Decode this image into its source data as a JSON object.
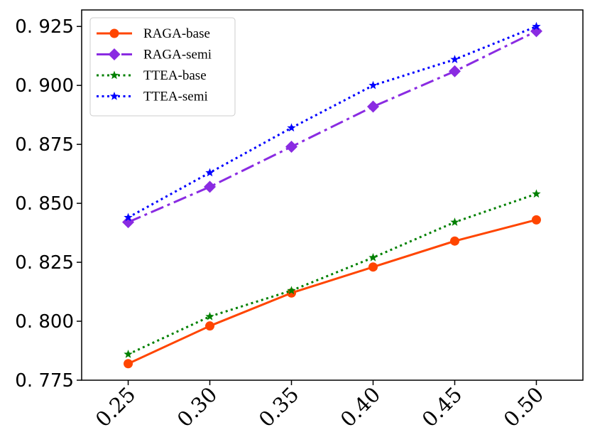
{
  "chart_data": {
    "type": "line",
    "title": "",
    "xlabel": "",
    "ylabel": "",
    "x": [
      0.25,
      0.3,
      0.35,
      0.4,
      0.45,
      0.5
    ],
    "x_tick_labels": [
      "0.25",
      "0.30",
      "0.35",
      "0.40",
      "0.45",
      "0.50"
    ],
    "y_ticks": [
      0.775,
      0.8,
      0.825,
      0.85,
      0.875,
      0.9,
      0.925
    ],
    "y_tick_labels": [
      "0. 775",
      "0. 800",
      "0. 825",
      "0. 850",
      "0. 875",
      "0. 900",
      "0. 925"
    ],
    "xlim": [
      0.2215,
      0.5285
    ],
    "ylim": [
      0.775,
      0.932
    ],
    "grid": false,
    "legend_position": "top-left",
    "series": [
      {
        "name": "RAGA-base",
        "values": [
          0.782,
          0.798,
          0.812,
          0.823,
          0.834,
          0.843
        ],
        "color": "#ff4500",
        "line_style": "solid",
        "marker": "circle"
      },
      {
        "name": "RAGA-semi",
        "values": [
          0.842,
          0.857,
          0.874,
          0.891,
          0.906,
          0.923
        ],
        "color": "#8a2be2",
        "line_style": "dashdot",
        "marker": "diamond"
      },
      {
        "name": "TTEA-base",
        "values": [
          0.786,
          0.802,
          0.813,
          0.827,
          0.842,
          0.854
        ],
        "color": "#008000",
        "line_style": "dotted",
        "marker": "star"
      },
      {
        "name": "TTEA-semi",
        "values": [
          0.844,
          0.863,
          0.882,
          0.9,
          0.911,
          0.925
        ],
        "color": "#0000ff",
        "line_style": "dotted",
        "marker": "star"
      }
    ]
  }
}
